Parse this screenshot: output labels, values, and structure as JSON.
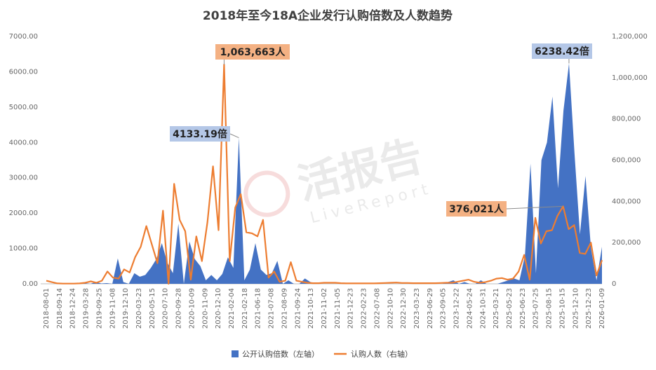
{
  "chart_data": {
    "type": "area",
    "title": "2018年至今18A企业发行认购倍数及人数趋势",
    "left_axis": {
      "min": 0,
      "max": 7000,
      "ticks": [
        "0.00",
        "1000.00",
        "2000.00",
        "3000.00",
        "4000.00",
        "5000.00",
        "6000.00",
        "7000.00"
      ]
    },
    "right_axis": {
      "min": 0,
      "max": 1200000,
      "ticks": [
        "0",
        "200,000",
        "400,000",
        "600,000",
        "800,000",
        "1,000,000",
        "1,200,000"
      ]
    },
    "x_tick_labels": [
      "2018-08-01",
      "2018-09-14",
      "2018-12-24",
      "2019-03-28",
      "2019-09-25",
      "2019-11-08",
      "2019-12-10",
      "2020-03-23",
      "2020-05-15",
      "2020-07-10",
      "2020-09-28",
      "2020-10-09",
      "2020-11-09",
      "2020-12-10",
      "2021-02-04",
      "2021-02-18",
      "2021-06-18",
      "2021-07-08",
      "2021-08-09",
      "2021-09-24",
      "2021-10-13",
      "2021-11-02",
      "2021-11-05",
      "2021-12-23",
      "2022-02-23",
      "2022-07-08",
      "2022-10-10",
      "2022-12-30",
      "2023-03-23",
      "2023-06-29",
      "2023-09-05",
      "2023-12-22",
      "2024-05-24",
      "2024-10-31",
      "2025-03-21",
      "2025-05-23",
      "2025-06-23",
      "2025-07-25",
      "2025-08-15",
      "2025-10-15",
      "2025-12-10",
      "2025-12-23",
      "2026-01-09"
    ],
    "series": [
      {
        "name": "公开认购倍数（左轴）",
        "axis": "left",
        "type": "area",
        "color": "#4472c4",
        "values": [
          0,
          0,
          0,
          0,
          0,
          0,
          0,
          20,
          0,
          50,
          10,
          20,
          0,
          720,
          50,
          0,
          300,
          200,
          250,
          450,
          700,
          1150,
          600,
          300,
          1700,
          0,
          1200,
          700,
          500,
          100,
          250,
          100,
          280,
          750,
          450,
          4133.19,
          100,
          400,
          1150,
          400,
          250,
          300,
          650,
          0,
          100,
          0,
          0,
          150,
          50,
          0,
          0,
          0,
          0,
          0,
          0,
          0,
          0,
          0,
          0,
          0,
          0,
          0,
          0,
          0,
          0,
          0,
          0,
          0,
          0,
          0,
          0,
          0,
          0,
          50,
          100,
          0,
          50,
          0,
          0,
          100,
          0,
          0,
          0,
          50,
          100,
          150,
          100,
          800,
          3400,
          300,
          3500,
          4000,
          5300,
          2700,
          4900,
          6238.42,
          3700,
          1400,
          3050,
          1000,
          100,
          1050
        ]
      },
      {
        "name": "认购人数（右轴）",
        "axis": "right",
        "type": "line",
        "color": "#ed7d31",
        "values": [
          15000,
          8000,
          2000,
          1000,
          1000,
          1000,
          2000,
          5000,
          12000,
          5000,
          15000,
          60000,
          30000,
          25000,
          70000,
          55000,
          130000,
          180000,
          280000,
          190000,
          100000,
          355000,
          0,
          485000,
          310000,
          255000,
          20000,
          230000,
          110000,
          300000,
          570000,
          260000,
          1063663,
          110000,
          370000,
          435000,
          250000,
          245000,
          230000,
          310000,
          30000,
          60000,
          10000,
          15000,
          105000,
          15000,
          10000,
          5000,
          3000,
          3000,
          5000,
          5000,
          5000,
          3000,
          2000,
          2000,
          2000,
          2000,
          2000,
          2000,
          3000,
          4000,
          5000,
          6000,
          4000,
          4000,
          3000,
          3000,
          3000,
          3000,
          3000,
          4000,
          5000,
          5000,
          10000,
          15000,
          20000,
          10000,
          5000,
          8000,
          15000,
          25000,
          28000,
          20000,
          25000,
          60000,
          140000,
          20000,
          320000,
          195000,
          255000,
          260000,
          330000,
          376021,
          265000,
          285000,
          150000,
          145000,
          200000,
          40000,
          115000
        ]
      }
    ],
    "annotations": [
      {
        "text": "1,063,663人",
        "series": "认购人数（右轴）",
        "value": 1063663
      },
      {
        "text": "4133.19倍",
        "series": "公开认购倍数（左轴）",
        "value": 4133.19
      },
      {
        "text": "6238.42倍",
        "series": "公开认购倍数（左轴）",
        "value": 6238.42
      },
      {
        "text": "376,021人",
        "series": "认购人数（右轴）",
        "value": 376021
      }
    ],
    "watermark": {
      "main": "活报告",
      "sub": "LiveReport"
    },
    "legend_position": "bottom",
    "grid": false
  }
}
